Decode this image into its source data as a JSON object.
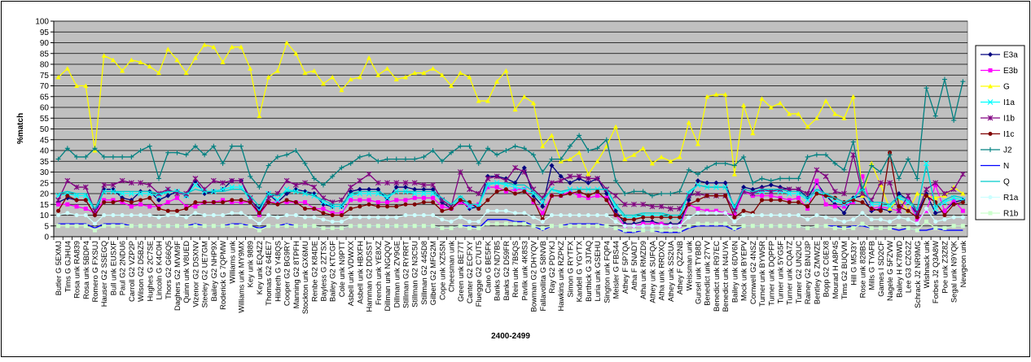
{
  "chart_data": {
    "type": "line",
    "xlabel": "2400-2499",
    "ylabel": "%match",
    "ylim": [
      0,
      100
    ],
    "ytick_step": 5,
    "grid": true,
    "legend": "right",
    "plot_background": "#c0c0c0",
    "categories": [
      "Butler G 5EXMJ",
      "Tims G GJHU4",
      "Rosa unk RA839",
      "Rosa unk 5BDP4",
      "Romero G FXSUJ",
      "Hauser G2 SSEGQ",
      "Bull unk EUSXF",
      "Paul G2 2NDU6",
      "Carroll G2 VZP2P",
      "Wilson G2 D5BZ5",
      "Hughes G 2C7SE",
      "Lincoln G K4C0H",
      "Thors G2 G66Q5",
      "Daghers G2 MVM9F",
      "Quinn unk V8UED",
      "Vizenor G2 DSXNV",
      "Steeley G2 UE7GM",
      "Bailey G2 NHP9X",
      "Roderick G 7QPMW",
      "Williams unk",
      "Williams unk MY9MX",
      "Key unk 9889",
      "Key unk EQ4Z2",
      "Thomas G2 64EE7",
      "Hildreth G Y48QS",
      "Cooper G2 BG9RY",
      "Manning G2 8TPFH",
      "Stockton unk GX6MU",
      "Renbe G2 K84DE",
      "Bayless G 2ZTSX",
      "Bailey G2 KTCGF",
      "Cole unk N9PTT",
      "Asbell unk VDWXX",
      "Asbell unk HBXFH",
      "Hamman G2 DDSST",
      "French unk YE8XZ",
      "Dillman unk NGQQV",
      "Dillman unk ZV9GE",
      "Stillman G2 RYRRT",
      "Stillman G2 N3C5U",
      "Stillman G2 445D8",
      "Gilbert G2 MFG2M",
      "Cope unk XZ5SN",
      "Cheesman unk",
      "Green unk BE77T",
      "Canter G2 ECFXY",
      "Fluegge G2 C7UT5",
      "Cano G BE5FK",
      "Banks G2 ND7B5",
      "Banks G2 D59FR",
      "Rein unk 7B5QS",
      "Pavlik unk 4K8S3",
      "Bowman G2 DHYQV",
      "Fallavollita G 58NVB",
      "Ray G2 PDYKJ",
      "Hawkins unk RZPKZ",
      "Simon G RYTFX",
      "Kandell G YGYTX",
      "Burthick G 3JTAQ",
      "Luria unk GSEHU",
      "Sington unk FQP4",
      "Meisler G FBS44",
      "Athey F 5P7QA",
      "Atha F 5NADT",
      "Atha unk RMZD9",
      "Athey unk SUFQA",
      "Atha unk RRDXQ",
      "Athey unk SS2UA",
      "Athey F QZ2NB",
      "Weissman unk",
      "Gursel unk TYB8D",
      "Benedict unk 27YV",
      "Benedict unk R97EC",
      "Benedict unk N4UYA",
      "Bailey unk 6DV6N",
      "Mock unk BYEPV",
      "Cornwell G2 4NSZ",
      "Turner unk BYW5R",
      "Turner unk DQPFP",
      "Turner unk 5YG5F",
      "Turner unk CQA7Z",
      "Turner G2 UN2UC",
      "Rainey G2 BNU3P",
      "Bentley G ZMWZE",
      "Bopp G2 C6EX8",
      "Mourad H A8P45",
      "Tims G2 BUQVM",
      "Hill G M5J3Y",
      "Rose unk 828BS",
      "Mills G TYAFB",
      "Games I SD2CF",
      "Nagele G 5FZVW",
      "Bailey H K78WD",
      "Lee G3 CZG2Z",
      "Schrack J2 NR9MG",
      "Wishnack unk",
      "Forbes J2 Q3A8W",
      "Poe unk Z3Z8Z",
      "Segal unk N9YQK",
      "Newgeon unk"
    ],
    "series": [
      {
        "name": "E3a",
        "color": "#000080",
        "marker": "diamond",
        "values": [
          16,
          18,
          17,
          17,
          10,
          22,
          22,
          18,
          17,
          21,
          21,
          17,
          19,
          21,
          19,
          26,
          20,
          21,
          22,
          26,
          26,
          17,
          13,
          20,
          16,
          20,
          22,
          21,
          20,
          15,
          14,
          14,
          21,
          22,
          22,
          22,
          17,
          23,
          23,
          22,
          22,
          22,
          16,
          13,
          17,
          13,
          14,
          28,
          28,
          27,
          25,
          32,
          19,
          14,
          33,
          28,
          25,
          27,
          25,
          27,
          20,
          12,
          6,
          6,
          7,
          7,
          6,
          6,
          6,
          17,
          26,
          25,
          25,
          25,
          13,
          23,
          22,
          23,
          24,
          23,
          22,
          22,
          18,
          25,
          19,
          15,
          11,
          18,
          19,
          12,
          13,
          12,
          20,
          17,
          10,
          20,
          11,
          12,
          16,
          17
        ]
      },
      {
        "name": "E3b",
        "color": "#ff00ff",
        "marker": "square",
        "values": [
          15,
          15,
          14,
          13,
          11,
          17,
          17,
          16,
          14,
          15,
          14,
          14,
          16,
          18,
          14,
          14,
          16,
          16,
          17,
          16,
          16,
          16,
          10,
          16,
          16,
          16,
          16,
          16,
          13,
          13,
          11,
          11,
          17,
          17,
          17,
          16,
          16,
          17,
          17,
          18,
          18,
          18,
          14,
          13,
          16,
          14,
          15,
          23,
          23,
          21,
          22,
          22,
          16,
          11,
          19,
          19,
          21,
          19,
          18,
          19,
          18,
          10,
          5,
          5,
          6,
          6,
          6,
          5,
          5,
          15,
          13,
          12,
          12,
          11,
          10,
          21,
          19,
          19,
          19,
          18,
          17,
          18,
          13,
          26,
          15,
          14,
          14,
          16,
          28,
          13,
          14,
          13,
          12,
          17,
          8,
          12,
          24,
          12,
          17,
          12
        ]
      },
      {
        "name": "G",
        "color": "#ffff00",
        "marker": "triangle",
        "values": [
          74,
          78,
          70,
          70,
          40,
          84,
          82,
          77,
          82,
          81,
          79,
          76,
          87,
          82,
          76,
          83,
          89,
          88,
          81,
          88,
          88,
          78,
          56,
          74,
          77,
          90,
          85,
          76,
          77,
          71,
          74,
          68,
          73,
          74,
          83,
          75,
          78,
          73,
          74,
          76,
          76,
          78,
          75,
          70,
          76,
          74,
          63,
          63,
          72,
          77,
          59,
          65,
          62,
          42,
          47,
          35,
          36,
          39,
          29,
          35,
          42,
          51,
          36,
          38,
          41,
          34,
          37,
          35,
          37,
          53,
          43,
          65,
          66,
          66,
          29,
          61,
          48,
          64,
          60,
          62,
          57,
          57,
          51,
          55,
          63,
          57,
          55,
          65,
          19,
          34,
          24,
          13,
          18,
          12,
          20,
          19,
          18,
          19,
          23,
          20
        ]
      },
      {
        "name": "I1a",
        "color": "#00ffff",
        "marker": "x",
        "values": [
          19,
          20,
          19,
          19,
          12,
          21,
          21,
          20,
          20,
          20,
          20,
          19,
          21,
          21,
          19,
          24,
          21,
          21,
          22,
          23,
          23,
          17,
          12,
          20,
          17,
          22,
          21,
          20,
          19,
          16,
          14,
          14,
          19,
          20,
          20,
          20,
          18,
          21,
          21,
          20,
          20,
          20,
          17,
          14,
          18,
          14,
          14,
          24,
          25,
          24,
          23,
          22,
          20,
          16,
          22,
          20,
          22,
          22,
          22,
          22,
          22,
          14,
          9,
          9,
          10,
          10,
          10,
          9,
          9,
          20,
          24,
          23,
          23,
          23,
          13,
          21,
          20,
          21,
          21,
          21,
          20,
          20,
          17,
          21,
          19,
          17,
          15,
          17,
          23,
          15,
          15,
          14,
          18,
          16,
          12,
          34,
          13,
          16,
          18,
          17
        ]
      },
      {
        "name": "I1b",
        "color": "#800080",
        "marker": "star",
        "values": [
          17,
          26,
          23,
          23,
          12,
          24,
          24,
          26,
          25,
          25,
          24,
          20,
          22,
          20,
          20,
          27,
          22,
          26,
          25,
          26,
          26,
          18,
          11,
          18,
          20,
          26,
          24,
          25,
          23,
          18,
          16,
          17,
          23,
          26,
          29,
          25,
          25,
          25,
          25,
          25,
          24,
          24,
          17,
          14,
          30,
          22,
          20,
          27,
          28,
          26,
          32,
          30,
          22,
          18,
          25,
          26,
          28,
          28,
          27,
          27,
          22,
          19,
          15,
          15,
          15,
          14,
          14,
          13,
          13,
          19,
          20,
          19,
          19,
          19,
          12,
          21,
          20,
          22,
          21,
          22,
          22,
          22,
          20,
          31,
          28,
          21,
          20,
          38,
          20,
          17,
          25,
          25,
          12,
          19,
          11,
          22,
          25,
          20,
          22,
          29
        ]
      },
      {
        "name": "I1c",
        "color": "#800000",
        "marker": "circle",
        "values": [
          12,
          19,
          17,
          17,
          10,
          16,
          16,
          17,
          16,
          17,
          18,
          13,
          12,
          12,
          13,
          16,
          16,
          16,
          16,
          17,
          17,
          16,
          11,
          16,
          15,
          17,
          16,
          13,
          13,
          11,
          10,
          10,
          13,
          14,
          15,
          14,
          14,
          14,
          15,
          15,
          16,
          16,
          12,
          13,
          17,
          16,
          13,
          17,
          21,
          22,
          20,
          21,
          17,
          8,
          19,
          19,
          20,
          21,
          19,
          21,
          17,
          10,
          8,
          8,
          9,
          9,
          9,
          9,
          9,
          15,
          17,
          19,
          19,
          19,
          9,
          12,
          11,
          17,
          17,
          17,
          16,
          16,
          14,
          20,
          19,
          18,
          16,
          17,
          16,
          13,
          12,
          39,
          14,
          12,
          9,
          19,
          16,
          10,
          15,
          16
        ]
      },
      {
        "name": "J2",
        "color": "#008080",
        "marker": "plus",
        "values": [
          36,
          41,
          37,
          37,
          41,
          37,
          37,
          37,
          37,
          40,
          42,
          27,
          39,
          39,
          38,
          42,
          38,
          42,
          34,
          42,
          42,
          28,
          23,
          33,
          37,
          38,
          40,
          34,
          27,
          24,
          28,
          32,
          34,
          37,
          38,
          35,
          36,
          36,
          36,
          36,
          37,
          40,
          35,
          39,
          42,
          42,
          34,
          41,
          38,
          40,
          42,
          41,
          38,
          30,
          36,
          36,
          42,
          47,
          40,
          41,
          45,
          26,
          20,
          21,
          21,
          19,
          20,
          20,
          21,
          31,
          29,
          32,
          34,
          34,
          33,
          37,
          25,
          27,
          26,
          27,
          27,
          27,
          37,
          38,
          38,
          34,
          31,
          44,
          22,
          33,
          30,
          38,
          27,
          36,
          27,
          69,
          56,
          73,
          54,
          72
        ]
      },
      {
        "name": "N",
        "color": "#0000ff",
        "marker": "line",
        "values": [
          6,
          6,
          6,
          6,
          4,
          6,
          6,
          6,
          5,
          5,
          5,
          5,
          5,
          5,
          5,
          6,
          5,
          5,
          5,
          6,
          6,
          5,
          4,
          5,
          5,
          6,
          5,
          5,
          5,
          4,
          4,
          4,
          5,
          5,
          5,
          5,
          5,
          5,
          5,
          5,
          5,
          5,
          4,
          4,
          5,
          5,
          4,
          8,
          8,
          8,
          7,
          7,
          5,
          3,
          5,
          5,
          6,
          6,
          6,
          6,
          5,
          4,
          2,
          2,
          3,
          3,
          2,
          2,
          2,
          4,
          5,
          5,
          5,
          5,
          3,
          5,
          5,
          5,
          5,
          5,
          5,
          5,
          4,
          5,
          5,
          5,
          4,
          5,
          5,
          4,
          4,
          4,
          3,
          4,
          3,
          3,
          4,
          3,
          3,
          3
        ]
      },
      {
        "name": "Q",
        "color": "#00cccc",
        "marker": "line",
        "values": [
          20,
          21,
          20,
          20,
          13,
          21,
          21,
          21,
          21,
          21,
          21,
          20,
          21,
          21,
          20,
          22,
          21,
          21,
          21,
          22,
          22,
          19,
          14,
          20,
          19,
          21,
          21,
          20,
          19,
          17,
          15,
          15,
          20,
          21,
          21,
          21,
          19,
          21,
          21,
          21,
          21,
          21,
          18,
          15,
          19,
          15,
          15,
          25,
          25,
          25,
          24,
          24,
          21,
          17,
          22,
          21,
          22,
          22,
          22,
          22,
          22,
          15,
          10,
          10,
          11,
          11,
          11,
          10,
          10,
          21,
          24,
          23,
          23,
          23,
          14,
          22,
          21,
          22,
          22,
          22,
          21,
          21,
          18,
          22,
          20,
          18,
          16,
          18,
          22,
          16,
          16,
          15,
          19,
          17,
          13,
          33,
          14,
          17,
          19,
          18
        ]
      },
      {
        "name": "R1a",
        "color": "#ccffff",
        "marker": "circle",
        "values": [
          10,
          11,
          10,
          10,
          6,
          10,
          10,
          10,
          10,
          10,
          10,
          9,
          10,
          10,
          9,
          11,
          10,
          10,
          10,
          11,
          11,
          9,
          6,
          10,
          9,
          10,
          10,
          9,
          9,
          8,
          7,
          7,
          9,
          9,
          9,
          9,
          9,
          9,
          10,
          10,
          10,
          10,
          8,
          7,
          9,
          7,
          7,
          12,
          12,
          12,
          11,
          11,
          9,
          7,
          10,
          10,
          10,
          10,
          10,
          10,
          10,
          7,
          5,
          5,
          5,
          5,
          5,
          5,
          5,
          9,
          11,
          11,
          11,
          11,
          7,
          10,
          10,
          10,
          10,
          10,
          10,
          10,
          8,
          10,
          9,
          8,
          7,
          8,
          11,
          8,
          8,
          7,
          9,
          8,
          6,
          13,
          7,
          8,
          9,
          9
        ]
      },
      {
        "name": "R1b",
        "color": "#ccffcc",
        "marker": "square",
        "values": [
          5,
          5,
          5,
          5,
          3,
          5,
          5,
          5,
          5,
          5,
          5,
          5,
          5,
          5,
          5,
          5,
          5,
          5,
          5,
          5,
          5,
          5,
          3,
          5,
          5,
          5,
          5,
          5,
          5,
          4,
          4,
          4,
          5,
          5,
          5,
          5,
          5,
          5,
          5,
          5,
          5,
          5,
          4,
          4,
          5,
          4,
          4,
          6,
          6,
          6,
          6,
          6,
          5,
          4,
          5,
          5,
          5,
          5,
          5,
          5,
          5,
          4,
          3,
          3,
          3,
          3,
          3,
          3,
          3,
          5,
          6,
          6,
          6,
          6,
          4,
          5,
          5,
          5,
          5,
          5,
          5,
          5,
          4,
          5,
          5,
          4,
          4,
          4,
          6,
          4,
          4,
          4,
          5,
          4,
          3,
          7,
          4,
          4,
          5,
          5
        ]
      }
    ]
  }
}
